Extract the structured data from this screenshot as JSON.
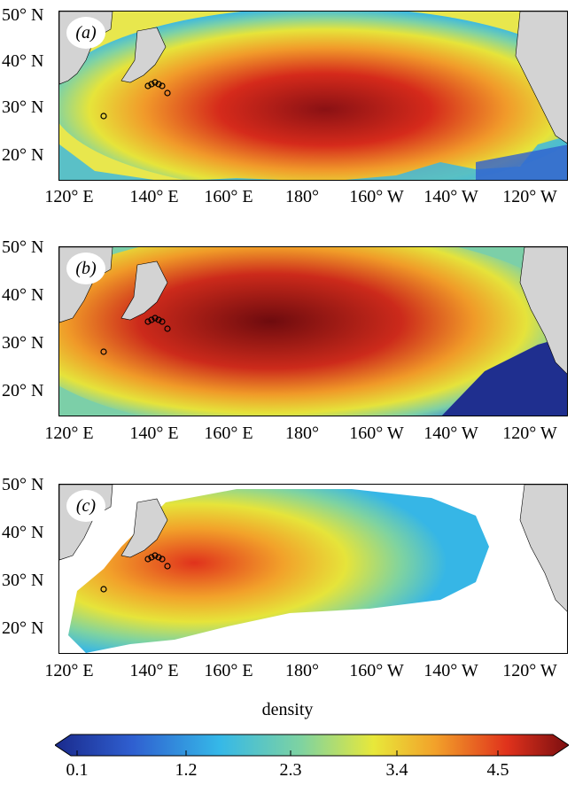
{
  "panels": [
    {
      "label": "(a)"
    },
    {
      "label": "(b)"
    },
    {
      "label": "(c)"
    }
  ],
  "lat_ticks": [
    "50° N",
    "40° N",
    "30° N",
    "20° N"
  ],
  "lon_ticks": [
    "120° E",
    "140° E",
    "160° E",
    "180°",
    "160° W",
    "140° W",
    "120° W"
  ],
  "colorbar": {
    "title": "density",
    "ticks": [
      "0.1",
      "1.2",
      "2.3",
      "3.4",
      "4.5"
    ],
    "colors": [
      "#1a2a8c",
      "#2f5fd0",
      "#35b8e8",
      "#7fd3a0",
      "#e8e83a",
      "#f2a12a",
      "#e0321c",
      "#7a0e10"
    ]
  },
  "land_color": "#d3d3d3",
  "markers": "release sites (circles)"
}
